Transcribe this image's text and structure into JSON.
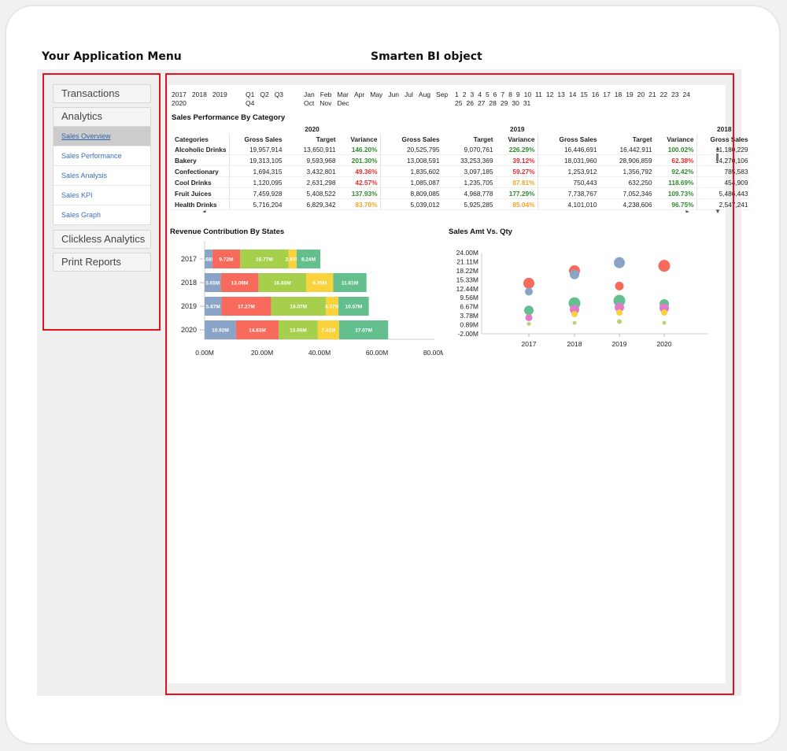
{
  "headings": {
    "menu": "Your Application Menu",
    "bi": "Smarten BI object"
  },
  "menu": {
    "items": [
      "Transactions",
      "Analytics",
      "Clickless Analytics",
      "Print Reports"
    ],
    "sub_items": [
      "Sales Overview",
      "Sales Performance",
      "Sales Analysis",
      "Sales KPI",
      "Sales Graph"
    ]
  },
  "filters": {
    "years": [
      "2017",
      "2018",
      "2019",
      "2020"
    ],
    "quarters": [
      "Q1",
      "Q2",
      "Q3",
      "Q4"
    ],
    "months": [
      "Jan",
      "Feb",
      "Mar",
      "Apr",
      "May",
      "Jun",
      "Jul",
      "Aug",
      "Sep",
      "Oct",
      "Nov",
      "Dec"
    ],
    "days": [
      "1",
      "2",
      "3",
      "4",
      "5",
      "6",
      "7",
      "8",
      "9",
      "10",
      "11",
      "12",
      "13",
      "14",
      "15",
      "16",
      "17",
      "18",
      "19",
      "20",
      "21",
      "22",
      "23",
      "24",
      "25",
      "26",
      "27",
      "28",
      "29",
      "30",
      "31"
    ]
  },
  "sales_table": {
    "title": "Sales Performance By Category",
    "year_headers": [
      "2020",
      "2019",
      "2018"
    ],
    "columns": [
      "Categories",
      "Gross Sales",
      "Target",
      "Variance",
      "Gross Sales",
      "Target",
      "Variance",
      "Gross Sales",
      "Target",
      "Variance",
      "Gross Sales"
    ],
    "rows": [
      {
        "cells": [
          "Alcoholic Drinks",
          "19,957,914",
          "13,650,911",
          "146.20%",
          "20,525,795",
          "9,070,761",
          "226.29%",
          "16,446,691",
          "16,442,911",
          "100.02%",
          "11,180,229"
        ],
        "status": [
          "pos",
          "pos",
          "pos"
        ]
      },
      {
        "cells": [
          "Bakery",
          "19,313,105",
          "9,593,968",
          "201.30%",
          "13,008,591",
          "33,253,369",
          "39.12%",
          "18,031,960",
          "28,906,859",
          "62.38%",
          "14,270,106"
        ],
        "status": [
          "pos",
          "neg",
          "neg"
        ]
      },
      {
        "cells": [
          "Confectionary",
          "1,694,315",
          "3,432,801",
          "49.36%",
          "1,835,602",
          "3,097,185",
          "59.27%",
          "1,253,912",
          "1,356,792",
          "92.42%",
          "785,583"
        ],
        "status": [
          "neg",
          "neg",
          "pos"
        ]
      },
      {
        "cells": [
          "Cool Drinks",
          "1,120,095",
          "2,631,298",
          "42.57%",
          "1,085,087",
          "1,235,705",
          "87.81%",
          "750,443",
          "632,250",
          "118.69%",
          "454,909"
        ],
        "status": [
          "neg",
          "mid",
          "pos"
        ]
      },
      {
        "cells": [
          "Fruit Juices",
          "7,459,928",
          "5,408,522",
          "137.93%",
          "8,809,085",
          "4,968,778",
          "177.29%",
          "7,738,767",
          "7,052,346",
          "109.73%",
          "5,486,443"
        ],
        "status": [
          "pos",
          "pos",
          "pos"
        ]
      },
      {
        "cells": [
          "Health Drinks",
          "5,716,204",
          "6,829,342",
          "83.70%",
          "5,039,012",
          "5,925,285",
          "85.04%",
          "4,101,010",
          "4,238,606",
          "96.75%",
          "2,547,241"
        ],
        "status": [
          "mid",
          "mid",
          "pos"
        ]
      }
    ]
  },
  "colors": {
    "seg": [
      "#8aa4c8",
      "#f86a5c",
      "#a6cf4c",
      "#f9d23c",
      "#63c08e"
    ],
    "bubble_red": "#f86a5c",
    "bubble_blue": "#8aa4c8",
    "bubble_green": "#63c08e",
    "bubble_pink": "#e37bcb",
    "bubble_yellow": "#f9d23c",
    "bubble_olive": "#b9d27a"
  },
  "chart_data": [
    {
      "type": "bar",
      "title": "Revenue Contribution By States",
      "stacked": true,
      "orientation": "horizontal",
      "categories": [
        "2017",
        "2018",
        "2019",
        "2020"
      ],
      "series": [
        {
          "values": [
            2.68,
            5.65,
            5.87,
            10.92
          ],
          "labels": [
            "2.68M",
            "5.65M",
            "5.87M",
            "10.92M"
          ]
        },
        {
          "values": [
            9.72,
            13.09,
            17.27,
            14.83
          ],
          "labels": [
            "9.72M",
            "13.09M",
            "17.27M",
            "14.83M"
          ]
        },
        {
          "values": [
            16.77,
            16.65,
            19.07,
            13.66
          ],
          "labels": [
            "16.77M",
            "16.65M",
            "19.07M",
            "13.66M"
          ]
        },
        {
          "values": [
            2.87,
            9.35,
            4.37,
            7.41
          ],
          "labels": [
            "2.87M",
            "9.35M",
            "4.37M",
            "7.41M"
          ]
        },
        {
          "values": [
            8.24,
            11.61,
            10.57,
            17.07
          ],
          "labels": [
            "8.24M",
            "11.61M",
            "10.57M",
            "17.07M"
          ]
        }
      ],
      "xlim": [
        0,
        80
      ],
      "x_ticks": [
        "0.00M",
        "20.00M",
        "40.00M",
        "60.00M",
        "80.00M"
      ]
    },
    {
      "type": "scatter",
      "title": "Sales Amt Vs. Qty",
      "categories": [
        "2017",
        "2018",
        "2019",
        "2020"
      ],
      "y_ticks": [
        "24.00M",
        "21.11M",
        "18.22M",
        "15.33M",
        "12.44M",
        "9.56M",
        "6.67M",
        "3.78M",
        "0.89M",
        "-2.00M"
      ],
      "ylim": [
        -2,
        24
      ],
      "points": [
        {
          "x": "2017",
          "y": 14.2,
          "size": 7,
          "color": "red"
        },
        {
          "x": "2017",
          "y": 11.5,
          "size": 5,
          "color": "blue"
        },
        {
          "x": "2017",
          "y": 5.5,
          "size": 6,
          "color": "green"
        },
        {
          "x": "2017",
          "y": 3.2,
          "size": 4.5,
          "color": "pink"
        },
        {
          "x": "2017",
          "y": 1.2,
          "size": 2.5,
          "color": "olive"
        },
        {
          "x": "2018",
          "y": 18.2,
          "size": 7,
          "color": "red"
        },
        {
          "x": "2018",
          "y": 17.0,
          "size": 6,
          "color": "blue"
        },
        {
          "x": "2018",
          "y": 7.8,
          "size": 7.5,
          "color": "green"
        },
        {
          "x": "2018",
          "y": 5.8,
          "size": 6,
          "color": "pink"
        },
        {
          "x": "2018",
          "y": 4.3,
          "size": 4,
          "color": "yellow"
        },
        {
          "x": "2018",
          "y": 1.5,
          "size": 2.5,
          "color": "olive"
        },
        {
          "x": "2019",
          "y": 20.8,
          "size": 7,
          "color": "blue"
        },
        {
          "x": "2019",
          "y": 13.3,
          "size": 5.5,
          "color": "red"
        },
        {
          "x": "2019",
          "y": 8.6,
          "size": 7.5,
          "color": "green"
        },
        {
          "x": "2019",
          "y": 6.5,
          "size": 6,
          "color": "pink"
        },
        {
          "x": "2019",
          "y": 4.8,
          "size": 4,
          "color": "yellow"
        },
        {
          "x": "2019",
          "y": 1.9,
          "size": 3,
          "color": "olive"
        },
        {
          "x": "2020",
          "y": 19.8,
          "size": 7.5,
          "color": "red"
        },
        {
          "x": "2020",
          "y": 7.6,
          "size": 6,
          "color": "green"
        },
        {
          "x": "2020",
          "y": 6.2,
          "size": 6,
          "color": "pink"
        },
        {
          "x": "2020",
          "y": 4.8,
          "size": 4,
          "color": "yellow"
        },
        {
          "x": "2020",
          "y": 1.5,
          "size": 2.5,
          "color": "olive"
        }
      ]
    }
  ]
}
